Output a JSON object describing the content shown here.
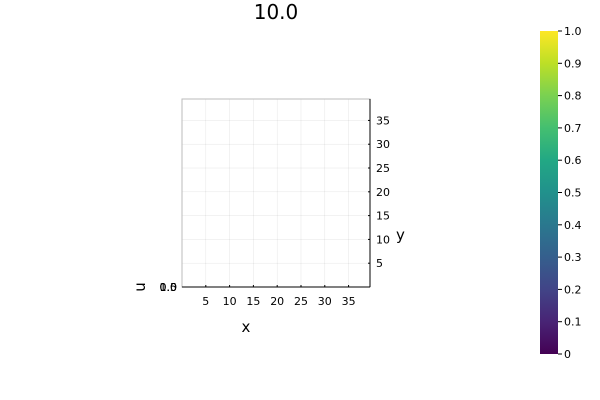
{
  "chart_data": {
    "type": "heatmap",
    "title": "10.0",
    "xlabel": "x",
    "ylabel": "y",
    "zlabel": "u",
    "xlim": [
      0,
      39.5
    ],
    "ylim": [
      0,
      39.5
    ],
    "x_ticks": [
      5,
      10,
      15,
      20,
      25,
      30,
      35
    ],
    "y_ticks": [
      5,
      10,
      15,
      20,
      25,
      30,
      35
    ],
    "z_ticks": [
      "0.0",
      "0.5",
      "1.0"
    ],
    "grid": true,
    "colorbar": {
      "colormap": "viridis",
      "range": [
        0,
        1
      ],
      "ticks": [
        "0",
        "0.1",
        "0.2",
        "0.3",
        "0.4",
        "0.5",
        "0.6",
        "0.7",
        "0.8",
        "0.9",
        "1.0"
      ]
    }
  }
}
